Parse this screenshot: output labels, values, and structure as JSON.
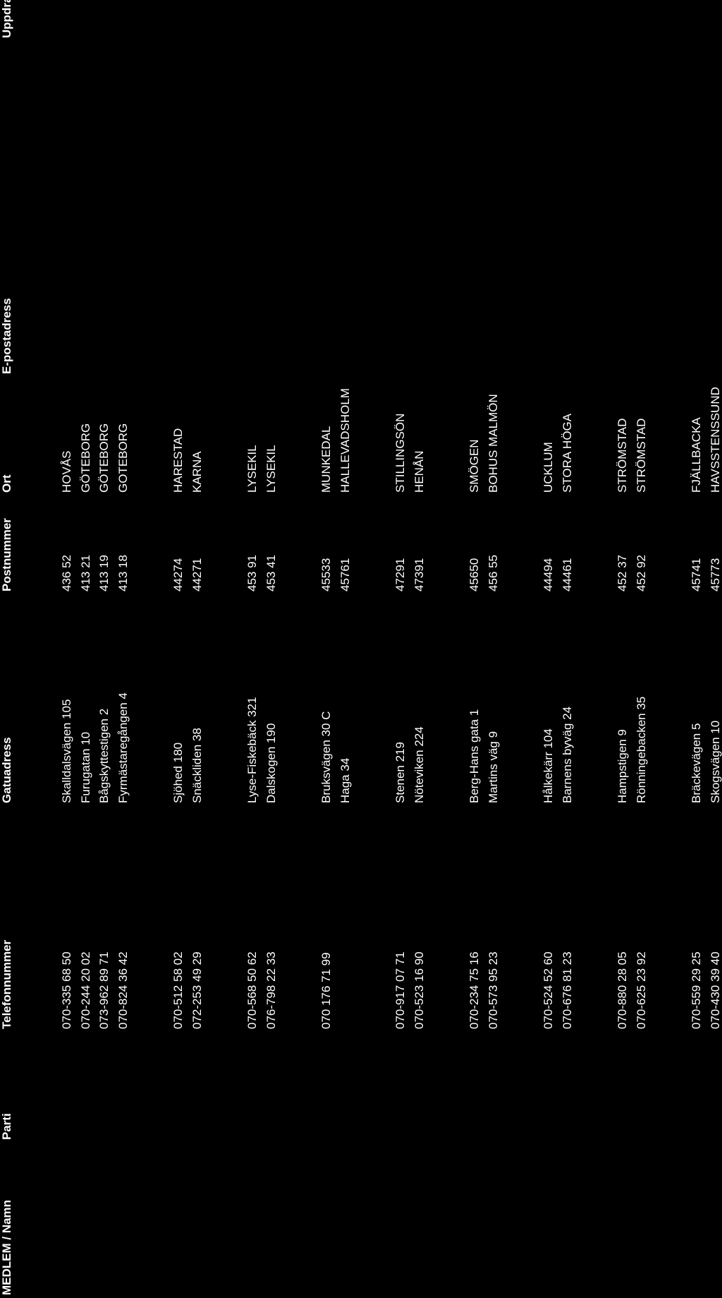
{
  "headers": {
    "namn": "MEDLEM / Namn",
    "parti": "Parti",
    "telefon": "Telefonnummer",
    "gatuadress": "Gatuadress",
    "postnummer": "Postnummer",
    "ort": "Ort",
    "epost": "E-postadress",
    "uppdrag": "Uppdrag"
  },
  "groups": [
    [
      {
        "telefon": "070-335 68 50",
        "gatuadress": "Skalldalsvägen 105",
        "postnummer": "436 52",
        "ort": "HOVÅS"
      },
      {
        "telefon": "070-244 20 02",
        "gatuadress": "Furugatan 10",
        "postnummer": "413 21",
        "ort": "GÖTEBORG"
      },
      {
        "telefon": "073-962 89 71",
        "gatuadress": "Bågskyttestigen 2",
        "postnummer": "413 19",
        "ort": "GÖTEBORG"
      },
      {
        "telefon": "070-824 36 42",
        "gatuadress": "Fyrmästaregången 4",
        "postnummer": "413 18",
        "ort": "GOTEBORG"
      }
    ],
    [
      {
        "telefon": "070-512 58 02",
        "gatuadress": "Sjöhed 180",
        "postnummer": "44274",
        "ort": "HARESTAD"
      },
      {
        "telefon": "072-253 49 29",
        "gatuadress": "Snäckliden 38",
        "postnummer": "44271",
        "ort": "KARNA"
      }
    ],
    [
      {
        "telefon": "070-568 50 62",
        "gatuadress": "Lyse-Fiskebäck 321",
        "postnummer": "453 91",
        "ort": "LYSEKIL"
      },
      {
        "telefon": "076-798 22 33",
        "gatuadress": "Dalskogen 190",
        "postnummer": "453 41",
        "ort": "LYSEKIL"
      }
    ],
    [
      {
        "telefon": "070 176 71 99",
        "gatuadress": "Bruksvägen 30 C",
        "postnummer": "45533",
        "ort": "MUNKEDAL"
      },
      {
        "telefon": "",
        "gatuadress": "Haga 34",
        "postnummer": "45761",
        "ort": "HALLEVADSHOLM"
      }
    ],
    [
      {
        "telefon": "070-917 07 71",
        "gatuadress": "Stenen 219",
        "postnummer": "47291",
        "ort": "STILLINGSÖN"
      },
      {
        "telefon": "070-523 16 90",
        "gatuadress": "Nöteviken 224",
        "postnummer": "47391",
        "ort": "HENÅN"
      }
    ],
    [
      {
        "telefon": "070-234 75 16",
        "gatuadress": "Berg-Hans gata 1",
        "postnummer": "45650",
        "ort": "SMÖGEN"
      },
      {
        "telefon": "070-573 95 23",
        "gatuadress": "Martins väg 9",
        "postnummer": "456 55",
        "ort": "BOHUS MALMÖN"
      }
    ],
    [
      {
        "telefon": "070-524 52 60",
        "gatuadress": "Hålkekärr 104",
        "postnummer": "44494",
        "ort": "UCKLUM"
      },
      {
        "telefon": "070-676 81 23",
        "gatuadress": "Barnens byväg 24",
        "postnummer": "44461",
        "ort": "STORA HÖGA"
      }
    ],
    [
      {
        "telefon": "070-880 28 05",
        "gatuadress": "Hampstigen 9",
        "postnummer": "452 37",
        "ort": "STRÖMSTAD"
      },
      {
        "telefon": "070-625 23 92",
        "gatuadress": "Rönningebacken 35",
        "postnummer": "452 92",
        "ort": "STRÖMSTAD"
      }
    ],
    [
      {
        "telefon": "070-559 29 25",
        "gatuadress": "Bräckevägen 5",
        "postnummer": "45741",
        "ort": "FJÄLLBACKA"
      },
      {
        "telefon": "070-430 39 40",
        "gatuadress": "Skogsvägen 10",
        "postnummer": "45773",
        "ort": "HAVSSTENSSUND"
      }
    ]
  ]
}
